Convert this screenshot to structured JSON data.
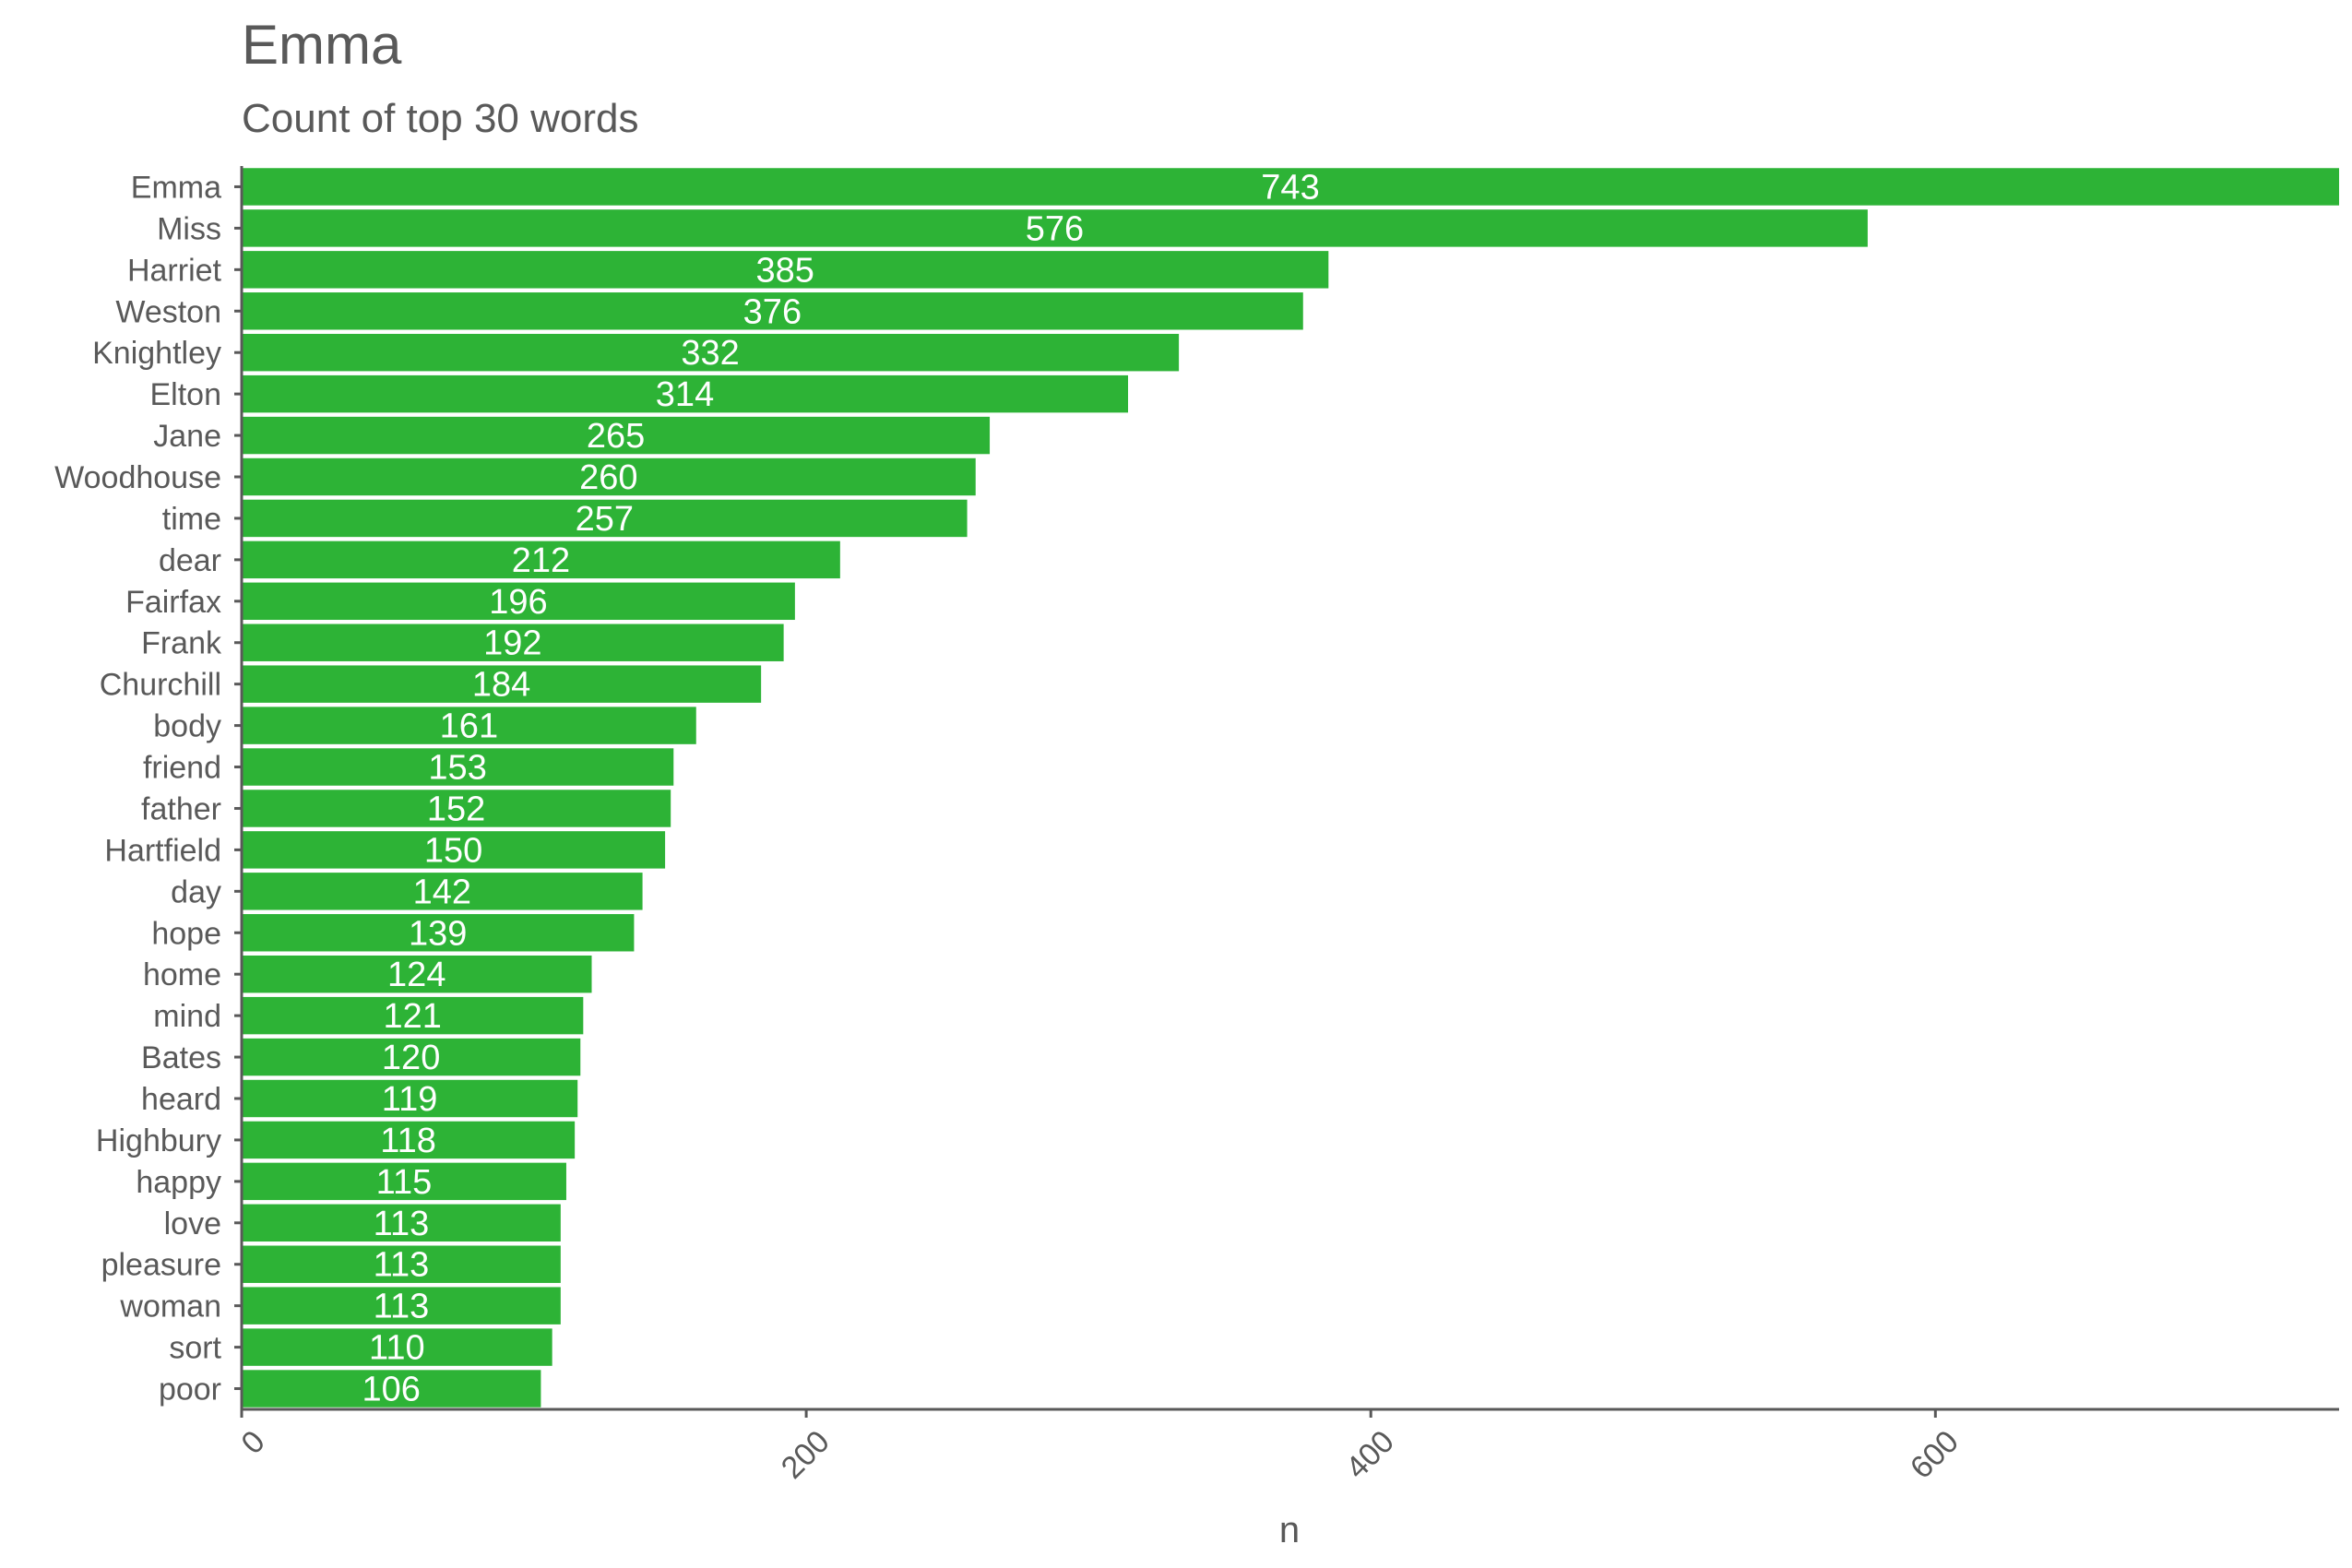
{
  "chart_data": {
    "type": "bar",
    "orientation": "horizontal",
    "title": "Emma",
    "subtitle": "Count of top 30 words",
    "xlabel": "n",
    "ylabel": "",
    "xlim": [
      0,
      743
    ],
    "x_ticks": [
      0,
      200,
      400,
      600
    ],
    "x_tick_labels": [
      "0",
      "200",
      "400",
      "600"
    ],
    "bar_color": "#2db336",
    "grid": false,
    "categories": [
      "Emma",
      "Miss",
      "Harriet",
      "Weston",
      "Knightley",
      "Elton",
      "Jane",
      "Woodhouse",
      "time",
      "dear",
      "Fairfax",
      "Frank",
      "Churchill",
      "body",
      "friend",
      "father",
      "Hartfield",
      "day",
      "hope",
      "home",
      "mind",
      "Bates",
      "heard",
      "Highbury",
      "happy",
      "love",
      "pleasure",
      "woman",
      "sort",
      "poor"
    ],
    "values": [
      743,
      576,
      385,
      376,
      332,
      314,
      265,
      260,
      257,
      212,
      196,
      192,
      184,
      161,
      153,
      152,
      150,
      142,
      139,
      124,
      121,
      120,
      119,
      118,
      115,
      113,
      113,
      113,
      110,
      106
    ]
  }
}
